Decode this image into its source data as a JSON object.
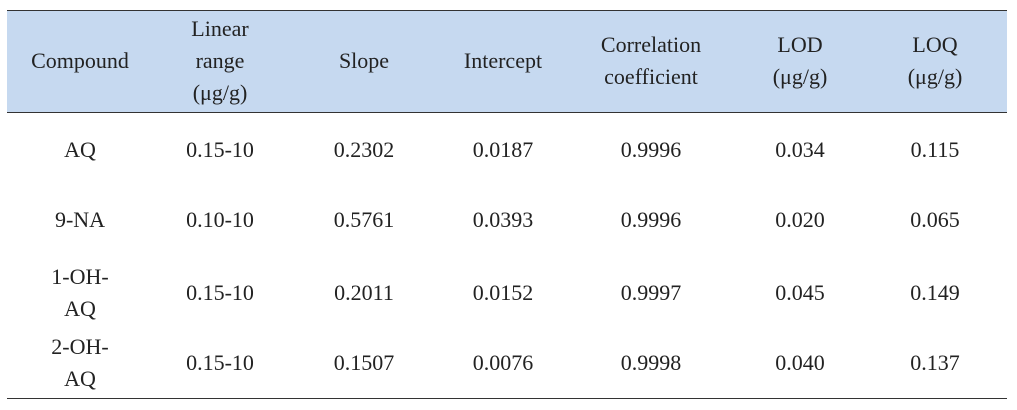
{
  "table": {
    "header": [
      [
        "Compound"
      ],
      [
        "Linear",
        "range",
        "(μg/g)"
      ],
      [
        "Slope"
      ],
      [
        "Intercept"
      ],
      [
        "Correlation",
        "coefficient"
      ],
      [
        "LOD",
        "(μg/g)"
      ],
      [
        "LOQ",
        "(μg/g)"
      ]
    ],
    "rows": [
      [
        [
          "AQ"
        ],
        "0.15-10",
        "0.2302",
        "0.0187",
        "0.9996",
        "0.034",
        "0.115"
      ],
      [
        [
          "9-NA"
        ],
        "0.10-10",
        "0.5761",
        "0.0393",
        "0.9996",
        "0.020",
        "0.065"
      ],
      [
        [
          "1-OH-",
          "AQ"
        ],
        "0.15-10",
        "0.2011",
        "0.0152",
        "0.9997",
        "0.045",
        "0.149"
      ],
      [
        [
          "2-OH-",
          "AQ"
        ],
        "0.15-10",
        "0.1507",
        "0.0076",
        "0.9998",
        "0.040",
        "0.137"
      ]
    ]
  }
}
